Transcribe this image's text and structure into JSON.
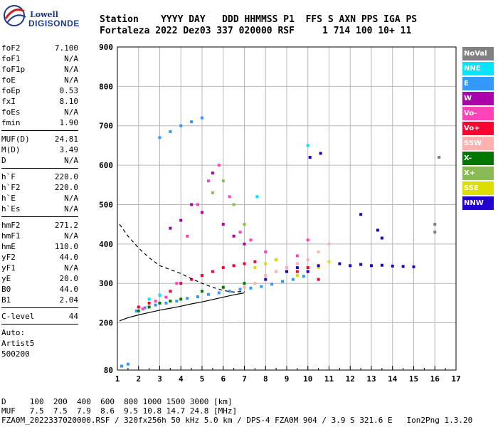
{
  "logo": {
    "line1": "Lowell",
    "line2": "DIGISONDE"
  },
  "header": {
    "row1": "Station    YYYY DAY   DDD HHMMSS P1  FFS S AXN PPS IGA PS",
    "row2": "Fortaleza 2022 Dez03 337 020000 RSF     1 714 100 10+ 11"
  },
  "params": {
    "group1": [
      {
        "label": "foF2",
        "value": "7.100"
      },
      {
        "label": "foF1",
        "value": "N/A"
      },
      {
        "label": "foF1p",
        "value": "N/A"
      },
      {
        "label": "foE",
        "value": "N/A"
      },
      {
        "label": "foEp",
        "value": "0.53"
      },
      {
        "label": "fxI",
        "value": "8.10"
      },
      {
        "label": "foEs",
        "value": "N/A"
      },
      {
        "label": "fmin",
        "value": "1.90"
      }
    ],
    "group2": [
      {
        "label": "MUF(D)",
        "value": "24.81"
      },
      {
        "label": "M(D)",
        "value": "3.49"
      },
      {
        "label": "D",
        "value": "N/A"
      }
    ],
    "group3": [
      {
        "label": "h`F",
        "value": "220.0"
      },
      {
        "label": "h`F2",
        "value": "220.0"
      },
      {
        "label": "h`E",
        "value": "N/A"
      },
      {
        "label": "h`Es",
        "value": "N/A"
      }
    ],
    "group4": [
      {
        "label": "hmF2",
        "value": "271.2"
      },
      {
        "label": "hmF1",
        "value": "N/A"
      },
      {
        "label": "hmE",
        "value": "110.0"
      },
      {
        "label": "yF2",
        "value": "44.0"
      },
      {
        "label": "yF1",
        "value": "N/A"
      },
      {
        "label": "yE",
        "value": "20.0"
      },
      {
        "label": "B0",
        "value": "44.0"
      },
      {
        "label": "B1",
        "value": "2.04"
      }
    ],
    "group5": [
      {
        "label": "C-level",
        "value": "44"
      }
    ],
    "auto": {
      "line1": "Auto:",
      "line2": "Artist5",
      "line3": "500200"
    }
  },
  "legend": [
    {
      "label": "NoVal",
      "color": "#808080"
    },
    {
      "label": "NNE",
      "color": "#00e5ff"
    },
    {
      "label": "E",
      "color": "#3399ff"
    },
    {
      "label": "W",
      "color": "#aa00aa"
    },
    {
      "label": "Vo-",
      "color": "#ff44bb"
    },
    {
      "label": "Vo+",
      "color": "#ff0033"
    },
    {
      "label": "SSW",
      "color": "#ffb0b0"
    },
    {
      "label": "X-",
      "color": "#007700"
    },
    {
      "label": "X+",
      "color": "#88bb55"
    },
    {
      "label": "SSE",
      "color": "#dddd00"
    },
    {
      "label": "NNW",
      "color": "#2200cc"
    }
  ],
  "footer": {
    "row1": "D     100  200  400  600  800 1000 1500 3000 [km]",
    "row2": "MUF   7.5  7.5  7.9  8.6  9.5 10.8 14.7 24.8 [MHz]",
    "row3": "FZA0M_2022337020000.RSF / 320fx256h 50 kHz 5.0 km / DPS-4 FZA0M 904 / 3.9 S 321.6 E   Ion2Png 1.3.20"
  },
  "chart_data": {
    "type": "scatter",
    "xlim": [
      1,
      17
    ],
    "ylim": [
      80,
      900
    ],
    "xticks": [
      "1",
      "2",
      "3",
      "4",
      "5",
      "6",
      "7",
      "8",
      "9",
      "10",
      "11",
      "12",
      "13",
      "14",
      "15",
      "16",
      "17"
    ],
    "yticks": [
      "80",
      "200",
      "300",
      "400",
      "500",
      "600",
      "700",
      "800",
      "900"
    ],
    "grid": true,
    "series": [
      {
        "name": "E",
        "color": "#3399ff",
        "points": [
          [
            1.9,
            230
          ],
          [
            2.3,
            238
          ],
          [
            2.8,
            245
          ],
          [
            3.3,
            250
          ],
          [
            3.8,
            255
          ],
          [
            4.3,
            262
          ],
          [
            4.8,
            266
          ],
          [
            5.3,
            272
          ],
          [
            5.8,
            276
          ],
          [
            6.3,
            280
          ],
          [
            6.8,
            285
          ],
          [
            7.3,
            288
          ],
          [
            7.8,
            292
          ],
          [
            8.3,
            298
          ],
          [
            8.8,
            305
          ],
          [
            9.3,
            310
          ],
          [
            9.8,
            318
          ],
          [
            3.0,
            670
          ],
          [
            3.5,
            685
          ],
          [
            4.0,
            700
          ],
          [
            4.5,
            710
          ],
          [
            5.0,
            720
          ],
          [
            1.2,
            90
          ],
          [
            1.5,
            95
          ]
        ]
      },
      {
        "name": "Vo+",
        "color": "#ff0033",
        "points": [
          [
            2.0,
            240
          ],
          [
            2.5,
            250
          ],
          [
            3.0,
            270
          ],
          [
            3.5,
            280
          ],
          [
            4.0,
            300
          ],
          [
            4.5,
            310
          ],
          [
            5.0,
            320
          ],
          [
            5.5,
            330
          ],
          [
            6.0,
            340
          ],
          [
            6.5,
            345
          ],
          [
            7.0,
            350
          ],
          [
            7.5,
            355
          ],
          [
            8.5,
            360
          ],
          [
            9.0,
            340
          ],
          [
            9.5,
            330
          ],
          [
            10.0,
            340
          ],
          [
            10.5,
            310
          ]
        ]
      },
      {
        "name": "Vo-",
        "color": "#ff44bb",
        "points": [
          [
            2.2,
            235
          ],
          [
            2.8,
            255
          ],
          [
            3.3,
            265
          ],
          [
            3.8,
            300
          ],
          [
            4.3,
            420
          ],
          [
            4.8,
            500
          ],
          [
            5.3,
            560
          ],
          [
            5.8,
            600
          ],
          [
            6.3,
            520
          ],
          [
            6.8,
            430
          ],
          [
            7.3,
            410
          ],
          [
            8.0,
            380
          ],
          [
            9.5,
            370
          ],
          [
            10.0,
            410
          ]
        ]
      },
      {
        "name": "SSW",
        "color": "#ffb0b0",
        "points": [
          [
            7.0,
            290
          ],
          [
            7.5,
            300
          ],
          [
            8.0,
            320
          ],
          [
            8.5,
            330
          ],
          [
            9.0,
            340
          ],
          [
            9.5,
            350
          ],
          [
            10.0,
            360
          ],
          [
            10.5,
            380
          ],
          [
            11.0,
            400
          ]
        ]
      },
      {
        "name": "X-",
        "color": "#007700",
        "points": [
          [
            2.0,
            230
          ],
          [
            2.5,
            240
          ],
          [
            3.0,
            250
          ],
          [
            3.5,
            255
          ],
          [
            4.0,
            260
          ],
          [
            5.0,
            280
          ],
          [
            6.0,
            290
          ],
          [
            7.0,
            300
          ]
        ]
      },
      {
        "name": "X+",
        "color": "#88bb55",
        "points": [
          [
            5.0,
            480
          ],
          [
            5.5,
            530
          ],
          [
            6.0,
            560
          ],
          [
            6.5,
            500
          ],
          [
            7.0,
            450
          ]
        ]
      },
      {
        "name": "SSE",
        "color": "#dddd00",
        "points": [
          [
            7.5,
            340
          ],
          [
            8.0,
            350
          ],
          [
            8.5,
            360
          ],
          [
            9.0,
            330
          ],
          [
            9.5,
            320
          ],
          [
            10.0,
            330
          ],
          [
            10.5,
            340
          ],
          [
            11.0,
            355
          ]
        ]
      },
      {
        "name": "NNW",
        "color": "#2200cc",
        "points": [
          [
            9.5,
            340
          ],
          [
            10.0,
            330
          ],
          [
            10.5,
            345
          ],
          [
            11.5,
            350
          ],
          [
            12.0,
            345
          ],
          [
            12.5,
            348
          ],
          [
            13.0,
            345
          ],
          [
            13.5,
            346
          ],
          [
            14.0,
            344
          ],
          [
            14.5,
            343
          ],
          [
            15.0,
            342
          ],
          [
            9.0,
            330
          ],
          [
            8.0,
            310
          ],
          [
            10.1,
            620
          ],
          [
            10.6,
            630
          ],
          [
            12.5,
            475
          ],
          [
            13.3,
            435
          ],
          [
            13.5,
            415
          ]
        ]
      },
      {
        "name": "W",
        "color": "#aa00aa",
        "points": [
          [
            4.5,
            500
          ],
          [
            5.0,
            480
          ],
          [
            5.5,
            580
          ],
          [
            6.0,
            450
          ],
          [
            6.5,
            420
          ],
          [
            7.0,
            400
          ],
          [
            4.0,
            460
          ],
          [
            3.5,
            440
          ]
        ]
      },
      {
        "name": "NNE",
        "color": "#00e5ff",
        "points": [
          [
            10.0,
            650
          ],
          [
            7.6,
            520
          ],
          [
            2.5,
            260
          ],
          [
            3.0,
            270
          ]
        ]
      },
      {
        "name": "NoVal",
        "color": "#808080",
        "points": [
          [
            16.0,
            430
          ],
          [
            16.0,
            450
          ],
          [
            16.2,
            620
          ]
        ]
      }
    ],
    "lines": [
      {
        "name": "profile-dashed",
        "style": "dashed",
        "points": [
          [
            1.1,
            450
          ],
          [
            1.5,
            420
          ],
          [
            2.0,
            390
          ],
          [
            2.5,
            365
          ],
          [
            3.0,
            345
          ],
          [
            3.5,
            335
          ],
          [
            4.0,
            325
          ],
          [
            4.5,
            312
          ],
          [
            5.0,
            300
          ],
          [
            5.5,
            290
          ],
          [
            6.0,
            282
          ],
          [
            6.5,
            278
          ],
          [
            7.0,
            280
          ]
        ]
      },
      {
        "name": "profile-solid",
        "style": "solid",
        "points": [
          [
            1.1,
            205
          ],
          [
            1.5,
            213
          ],
          [
            2.0,
            220
          ],
          [
            2.5,
            226
          ],
          [
            3.0,
            232
          ],
          [
            3.5,
            237
          ],
          [
            4.0,
            242
          ],
          [
            4.5,
            248
          ],
          [
            5.0,
            253
          ],
          [
            5.5,
            259
          ],
          [
            6.0,
            265
          ],
          [
            6.5,
            271
          ],
          [
            7.0,
            276
          ]
        ]
      }
    ]
  }
}
